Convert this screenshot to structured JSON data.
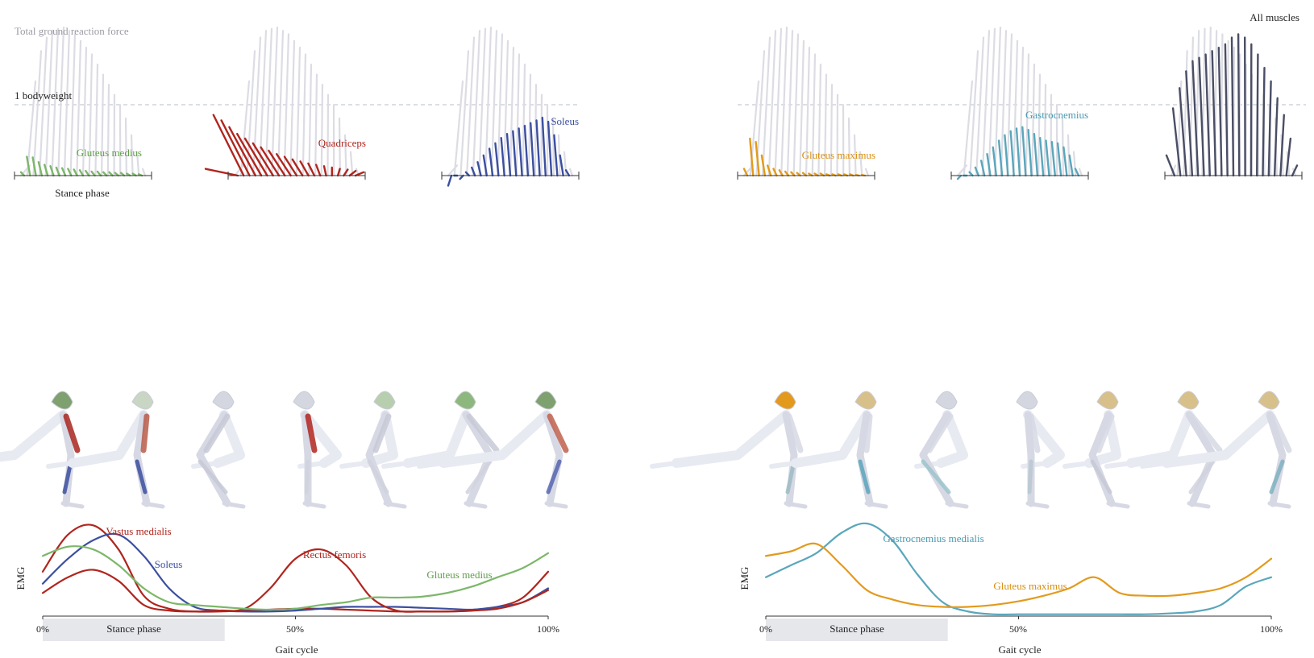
{
  "figure_labels": {
    "total_grf": "Total ground reaction force",
    "bodyweight": "1 bodyweight",
    "stance_phase": "Stance phase",
    "all_muscles": "All muscles",
    "emg": "EMG",
    "gait_cycle": "Gait cycle",
    "ticks": [
      "0%",
      "50%",
      "100%"
    ]
  },
  "colors": {
    "grf_gray": "#dcdce4",
    "gluteus_medius": "#7cb76a",
    "quadriceps": "#b0251e",
    "soleus": "#3b4fa0",
    "gluteus_maximus": "#e39a1c",
    "gastrocnemius": "#5aa6bb",
    "all_muscles": "#4a4e65",
    "dash": "#c8cad8",
    "stance_band": "#e6e7eb"
  },
  "chart_data": [
    {
      "type": "bar",
      "panel": "gluteus-medius-force",
      "x": [
        0,
        5,
        10,
        15,
        20,
        25,
        30,
        35,
        40,
        45,
        50,
        55,
        60,
        65,
        70,
        75,
        80,
        85,
        90,
        95,
        100
      ],
      "values": [
        0.05,
        0.28,
        0.27,
        0.2,
        0.16,
        0.14,
        0.12,
        0.11,
        0.1,
        0.09,
        0.08,
        0.07,
        0.06,
        0.06,
        0.05,
        0.05,
        0.04,
        0.04,
        0.03,
        0.03,
        0.02
      ],
      "series": [
        {
          "name": "Gluteus medius",
          "values": [
            0.05,
            0.28,
            0.27,
            0.2,
            0.16,
            0.14,
            0.12,
            0.11,
            0.1,
            0.09,
            0.08,
            0.07,
            0.06,
            0.06,
            0.05,
            0.05,
            0.04,
            0.04,
            0.03,
            0.03,
            0.02
          ]
        }
      ],
      "xlabel": "Stance phase"
    },
    {
      "type": "bar",
      "panel": "quadriceps-force",
      "x": [
        0,
        5,
        10,
        15,
        20,
        25,
        30,
        35,
        40,
        45,
        50,
        55,
        60,
        65,
        70,
        75,
        80,
        85,
        90,
        95,
        100
      ],
      "values": [
        0.1,
        0.9,
        0.82,
        0.72,
        0.62,
        0.55,
        0.48,
        0.42,
        0.37,
        0.32,
        0.28,
        0.24,
        0.21,
        0.18,
        0.16,
        0.14,
        0.12,
        0.1,
        0.09,
        0.07,
        0.05
      ],
      "series": [
        {
          "name": "Quadriceps",
          "values": [
            0.1,
            0.9,
            0.82,
            0.72,
            0.62,
            0.55,
            0.48,
            0.42,
            0.37,
            0.32,
            0.28,
            0.24,
            0.21,
            0.18,
            0.16,
            0.14,
            0.12,
            0.1,
            0.09,
            0.07,
            0.05
          ]
        }
      ]
    },
    {
      "type": "bar",
      "panel": "soleus-force",
      "x": [
        0,
        5,
        10,
        15,
        20,
        25,
        30,
        35,
        40,
        45,
        50,
        55,
        60,
        65,
        70,
        75,
        80,
        85,
        90,
        95,
        100
      ],
      "values": [
        -0.15,
        0.0,
        -0.05,
        0.05,
        0.12,
        0.2,
        0.3,
        0.4,
        0.48,
        0.56,
        0.62,
        0.66,
        0.7,
        0.74,
        0.78,
        0.82,
        0.86,
        0.8,
        0.6,
        0.3,
        0.08
      ],
      "series": [
        {
          "name": "Soleus",
          "values": [
            -0.15,
            0.0,
            -0.05,
            0.05,
            0.12,
            0.2,
            0.3,
            0.4,
            0.48,
            0.56,
            0.62,
            0.66,
            0.7,
            0.74,
            0.78,
            0.82,
            0.86,
            0.8,
            0.6,
            0.3,
            0.08
          ]
        }
      ]
    },
    {
      "type": "bar",
      "panel": "gluteus-maximus-force",
      "x": [
        0,
        5,
        10,
        15,
        20,
        25,
        30,
        35,
        40,
        45,
        50,
        55,
        60,
        65,
        70,
        75,
        80,
        85,
        90,
        95,
        100
      ],
      "values": [
        0.1,
        0.55,
        0.5,
        0.3,
        0.15,
        0.1,
        0.08,
        0.06,
        0.05,
        0.04,
        0.04,
        0.03,
        0.03,
        0.03,
        0.02,
        0.02,
        0.02,
        0.02,
        0.02,
        0.01,
        0.01
      ],
      "series": [
        {
          "name": "Gluteus maximus",
          "values": [
            0.1,
            0.55,
            0.5,
            0.3,
            0.15,
            0.1,
            0.08,
            0.06,
            0.05,
            0.04,
            0.04,
            0.03,
            0.03,
            0.03,
            0.02,
            0.02,
            0.02,
            0.02,
            0.02,
            0.01,
            0.01
          ]
        }
      ]
    },
    {
      "type": "bar",
      "panel": "gastrocnemius-force",
      "x": [
        0,
        5,
        10,
        15,
        20,
        25,
        30,
        35,
        40,
        45,
        50,
        55,
        60,
        65,
        70,
        75,
        80,
        85,
        90,
        95,
        100
      ],
      "values": [
        -0.05,
        0.0,
        0.05,
        0.12,
        0.22,
        0.32,
        0.42,
        0.52,
        0.6,
        0.66,
        0.7,
        0.72,
        0.68,
        0.62,
        0.56,
        0.52,
        0.5,
        0.48,
        0.42,
        0.3,
        0.1
      ],
      "series": [
        {
          "name": "Gastrocnemius",
          "values": [
            -0.05,
            0.0,
            0.05,
            0.12,
            0.22,
            0.32,
            0.42,
            0.52,
            0.6,
            0.66,
            0.7,
            0.72,
            0.68,
            0.62,
            0.56,
            0.52,
            0.5,
            0.48,
            0.42,
            0.3,
            0.1
          ]
        }
      ]
    },
    {
      "type": "bar",
      "panel": "all-muscles-force",
      "x": [
        0,
        5,
        10,
        15,
        20,
        25,
        30,
        35,
        40,
        45,
        50,
        55,
        60,
        65,
        70,
        75,
        80,
        85,
        90,
        95,
        100
      ],
      "values": [
        0.3,
        1.0,
        1.3,
        1.55,
        1.7,
        1.75,
        1.8,
        1.85,
        1.9,
        1.95,
        2.05,
        2.1,
        2.05,
        1.95,
        1.8,
        1.6,
        1.4,
        1.15,
        0.9,
        0.55,
        0.15
      ],
      "series": [
        {
          "name": "All muscles",
          "values": [
            0.3,
            1.0,
            1.3,
            1.55,
            1.7,
            1.75,
            1.8,
            1.85,
            1.9,
            1.95,
            2.05,
            2.1,
            2.05,
            1.95,
            1.8,
            1.6,
            1.4,
            1.15,
            0.9,
            0.55,
            0.15
          ]
        }
      ]
    },
    {
      "type": "line",
      "panel": "emg-left",
      "x": [
        0,
        5,
        10,
        15,
        20,
        25,
        30,
        35,
        40,
        45,
        50,
        55,
        60,
        65,
        70,
        75,
        80,
        85,
        90,
        95,
        100
      ],
      "series": [
        {
          "name": "Vastus medialis",
          "values": [
            0.48,
            0.88,
            0.98,
            0.72,
            0.22,
            0.08,
            0.05,
            0.05,
            0.06,
            0.07,
            0.08,
            0.08,
            0.07,
            0.06,
            0.05,
            0.05,
            0.05,
            0.06,
            0.1,
            0.2,
            0.48
          ]
        },
        {
          "name": "Soleus",
          "values": [
            0.35,
            0.62,
            0.82,
            0.88,
            0.65,
            0.3,
            0.1,
            0.06,
            0.05,
            0.05,
            0.06,
            0.08,
            0.1,
            0.1,
            0.1,
            0.09,
            0.08,
            0.07,
            0.1,
            0.15,
            0.3
          ]
        },
        {
          "name": "Rectus femoris",
          "values": [
            0.25,
            0.42,
            0.5,
            0.38,
            0.12,
            0.06,
            0.05,
            0.06,
            0.08,
            0.3,
            0.62,
            0.72,
            0.55,
            0.2,
            0.06,
            0.05,
            0.05,
            0.06,
            0.08,
            0.15,
            0.28
          ]
        },
        {
          "name": "Gluteus medius",
          "values": [
            0.65,
            0.75,
            0.72,
            0.55,
            0.3,
            0.15,
            0.12,
            0.1,
            0.08,
            0.07,
            0.08,
            0.12,
            0.15,
            0.2,
            0.2,
            0.21,
            0.25,
            0.32,
            0.42,
            0.52,
            0.68
          ]
        }
      ],
      "xlabel": "Gait cycle",
      "ylabel": "EMG",
      "ticks": [
        "0%",
        "50%",
        "100%"
      ],
      "stance_phase": [
        0,
        36
      ]
    },
    {
      "type": "line",
      "panel": "emg-right",
      "x": [
        0,
        5,
        10,
        15,
        20,
        25,
        30,
        35,
        40,
        45,
        50,
        55,
        60,
        65,
        70,
        75,
        80,
        85,
        90,
        95,
        100
      ],
      "series": [
        {
          "name": "Gastrocnemius medialis",
          "values": [
            0.42,
            0.55,
            0.68,
            0.9,
            1.0,
            0.82,
            0.45,
            0.15,
            0.05,
            0.02,
            0.02,
            0.02,
            0.02,
            0.02,
            0.02,
            0.02,
            0.03,
            0.05,
            0.12,
            0.32,
            0.42
          ]
        },
        {
          "name": "Gluteus maximus",
          "values": [
            0.65,
            0.7,
            0.78,
            0.55,
            0.28,
            0.18,
            0.12,
            0.1,
            0.1,
            0.12,
            0.16,
            0.22,
            0.3,
            0.42,
            0.25,
            0.22,
            0.22,
            0.25,
            0.3,
            0.42,
            0.62
          ]
        }
      ],
      "xlabel": "Gait cycle",
      "ylabel": "EMG",
      "ticks": [
        "0%",
        "50%",
        "100%"
      ],
      "stance_phase": [
        0,
        36
      ]
    }
  ]
}
